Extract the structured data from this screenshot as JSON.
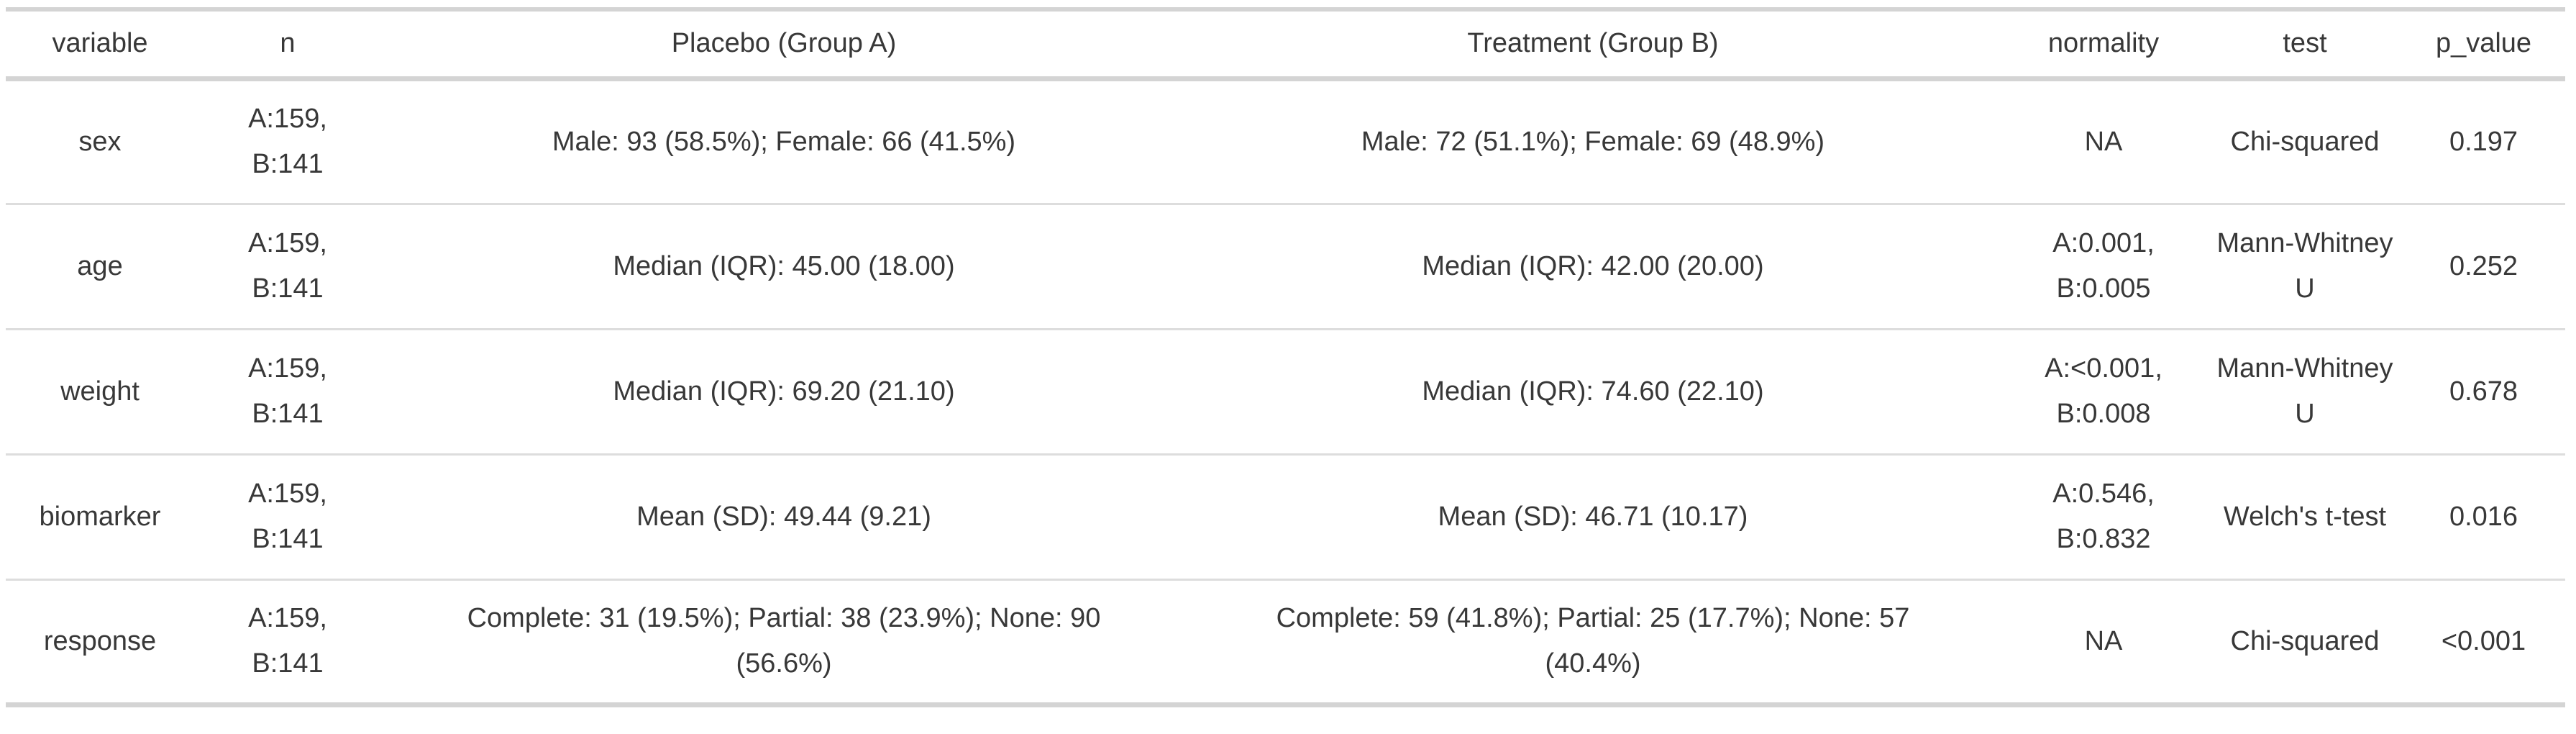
{
  "table": {
    "columns": [
      "variable",
      "n",
      "Placebo (Group A)",
      "Treatment (Group B)",
      "normality",
      "test",
      "p_value"
    ],
    "rows": [
      [
        "sex",
        "A:159,\nB:141",
        "Male: 93 (58.5%); Female: 66 (41.5%)",
        "Male: 72 (51.1%); Female: 69 (48.9%)",
        "NA",
        "Chi-squared",
        "0.197"
      ],
      [
        "age",
        "A:159,\nB:141",
        "Median (IQR): 45.00 (18.00)",
        "Median (IQR): 42.00 (20.00)",
        "A:0.001,\nB:0.005",
        "Mann-Whitney\nU",
        "0.252"
      ],
      [
        "weight",
        "A:159,\nB:141",
        "Median (IQR): 69.20 (21.10)",
        "Median (IQR): 74.60 (22.10)",
        "A:<0.001,\nB:0.008",
        "Mann-Whitney\nU",
        "0.678"
      ],
      [
        "biomarker",
        "A:159,\nB:141",
        "Mean (SD): 49.44 (9.21)",
        "Mean (SD): 46.71 (10.17)",
        "A:0.546,\nB:0.832",
        "Welch's t-test",
        "0.016"
      ],
      [
        "response",
        "A:159,\nB:141",
        "Complete: 31 (19.5%); Partial: 38 (23.9%); None: 90\n(56.6%)",
        "Complete: 59 (41.8%); Partial: 25 (17.7%); None: 57\n(40.4%)",
        "NA",
        "Chi-squared",
        "<0.001"
      ]
    ]
  },
  "chart_data": {
    "type": "table",
    "columns": [
      "variable",
      "n",
      "Placebo (Group A)",
      "Treatment (Group B)",
      "normality",
      "test",
      "p_value"
    ],
    "rows": [
      [
        "sex",
        "A:159, B:141",
        "Male: 93 (58.5%); Female: 66 (41.5%)",
        "Male: 72 (51.1%); Female: 69 (48.9%)",
        "NA",
        "Chi-squared",
        "0.197"
      ],
      [
        "age",
        "A:159, B:141",
        "Median (IQR): 45.00 (18.00)",
        "Median (IQR): 42.00 (20.00)",
        "A:0.001, B:0.005",
        "Mann-Whitney U",
        "0.252"
      ],
      [
        "weight",
        "A:159, B:141",
        "Median (IQR): 69.20 (21.10)",
        "Median (IQR): 74.60 (22.10)",
        "A:<0.001, B:0.008",
        "Mann-Whitney U",
        "0.678"
      ],
      [
        "biomarker",
        "A:159, B:141",
        "Mean (SD): 49.44 (9.21)",
        "Mean (SD): 46.71 (10.17)",
        "A:0.546, B:0.832",
        "Welch's t-test",
        "0.016"
      ],
      [
        "response",
        "A:159, B:141",
        "Complete: 31 (19.5%); Partial: 38 (23.9%); None: 90 (56.6%)",
        "Complete: 59 (41.8%); Partial: 25 (17.7%); None: 57 (40.4%)",
        "NA",
        "Chi-squared",
        "<0.001"
      ]
    ]
  },
  "colors": {
    "text": "#383838",
    "heavy_rule": "#d4d4d4",
    "light_rule": "#dddddd",
    "background": "#ffffff"
  }
}
